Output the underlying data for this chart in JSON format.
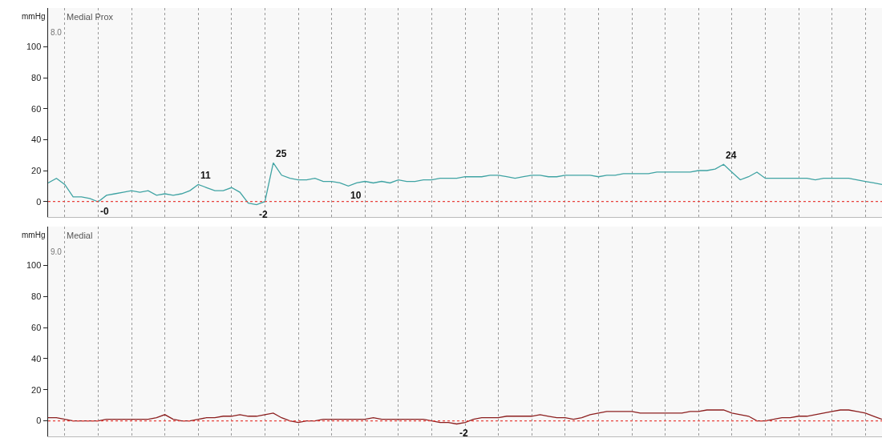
{
  "chart_data": [
    {
      "type": "line",
      "title": "Medial Prox",
      "ylabel": "mmHg",
      "annotations": [
        "8.0"
      ],
      "categories": [
        null,
        null,
        null,
        null,
        null,
        null,
        null,
        null,
        null,
        null,
        null,
        null,
        null,
        null,
        null,
        null,
        null,
        null,
        null,
        null,
        null,
        null,
        null,
        null,
        null,
        null,
        null,
        null,
        null,
        null,
        null,
        null,
        null,
        null,
        null,
        null,
        null,
        null,
        null,
        null,
        null,
        null,
        null,
        null,
        null,
        null,
        null,
        null,
        null,
        null,
        null,
        null,
        null,
        null,
        null,
        null,
        null,
        null,
        null,
        null,
        null,
        null,
        null,
        null,
        null,
        null,
        null,
        null,
        null,
        null,
        null,
        null,
        null,
        null,
        null,
        null,
        null,
        null,
        null,
        null,
        null,
        null,
        null,
        null,
        null,
        null,
        null,
        null,
        null,
        null,
        null,
        null,
        null,
        null,
        null,
        null,
        null,
        null,
        null,
        null,
        null
      ],
      "series": [
        {
          "color": "#3fa3a3",
          "values": [
            12,
            15,
            11,
            3,
            3,
            2,
            -0.2,
            4,
            5,
            6,
            7,
            6,
            7,
            4,
            5,
            4,
            5,
            7,
            11,
            9,
            7,
            7,
            9,
            6,
            -1,
            -2,
            0,
            25,
            17,
            15,
            14,
            14,
            15,
            13,
            13,
            12,
            10,
            12,
            13,
            12,
            13,
            12,
            14,
            13,
            13,
            14,
            14,
            15,
            15,
            15,
            16,
            16,
            16,
            17,
            17,
            16,
            15,
            16,
            17,
            17,
            16,
            16,
            17,
            17,
            17,
            17,
            16,
            17,
            17,
            18,
            18,
            18,
            18,
            19,
            19,
            19,
            19,
            19,
            20,
            20,
            21,
            24,
            19,
            14,
            16,
            19,
            15,
            15,
            15,
            15,
            15,
            15,
            14,
            15,
            15,
            15,
            15,
            14,
            13,
            12,
            11
          ],
          "value_labels": [
            null,
            null,
            null,
            null,
            null,
            null,
            "-0",
            null,
            null,
            null,
            null,
            null,
            null,
            null,
            null,
            null,
            null,
            null,
            "11",
            null,
            null,
            null,
            null,
            null,
            null,
            "-2",
            null,
            "25",
            null,
            null,
            null,
            null,
            null,
            null,
            null,
            null,
            "10",
            null,
            null,
            null,
            null,
            null,
            null,
            null,
            null,
            null,
            null,
            null,
            null,
            null,
            null,
            null,
            null,
            null,
            null,
            null,
            null,
            null,
            null,
            null,
            null,
            null,
            null,
            null,
            null,
            null,
            null,
            null,
            null,
            null,
            null,
            null,
            null,
            null,
            null,
            null,
            null,
            null,
            null,
            null,
            null,
            "24",
            null,
            null,
            null,
            null,
            null,
            null,
            null,
            null,
            null,
            null,
            null,
            null,
            null,
            null,
            null,
            null,
            null,
            null,
            null
          ]
        }
      ],
      "ylim": [
        -10,
        125
      ],
      "yticks": [
        0,
        20,
        40,
        60,
        80,
        100
      ],
      "grid": "x",
      "ref_lines": [
        {
          "axis": "y",
          "value": 0,
          "color": "#e8423c",
          "line_style": "dotted"
        }
      ]
    },
    {
      "type": "line",
      "title": "Medial",
      "ylabel": "mmHg",
      "annotations": [
        "9.0"
      ],
      "categories": [
        null,
        null,
        null,
        null,
        null,
        null,
        null,
        null,
        null,
        null,
        null,
        null,
        null,
        null,
        null,
        null,
        null,
        null,
        null,
        null,
        null,
        null,
        null,
        null,
        null,
        null,
        null,
        null,
        null,
        null,
        null,
        null,
        null,
        null,
        null,
        null,
        null,
        null,
        null,
        null,
        null,
        null,
        null,
        null,
        null,
        null,
        null,
        null,
        null,
        null,
        null,
        null,
        null,
        null,
        null,
        null,
        null,
        null,
        null,
        null,
        null,
        null,
        null,
        null,
        null,
        null,
        null,
        null,
        null,
        null,
        null,
        null,
        null,
        null,
        null,
        null,
        null,
        null,
        null,
        null,
        null,
        null,
        null,
        null,
        null,
        null,
        null,
        null,
        null,
        null,
        null,
        null,
        null,
        null,
        null,
        null,
        null,
        null,
        null,
        null,
        null
      ],
      "series": [
        {
          "color": "#8c1f1f",
          "values": [
            2,
            2,
            1,
            0,
            0,
            0,
            0,
            1,
            1,
            1,
            1,
            1,
            1,
            2,
            4,
            1,
            0,
            0,
            1,
            2,
            2,
            3,
            3,
            4,
            3,
            3,
            4,
            5,
            2,
            0,
            -1,
            0,
            0,
            1,
            1,
            1,
            1,
            1,
            1,
            2,
            1,
            1,
            1,
            1,
            1,
            1,
            0,
            -1,
            -1,
            -2,
            -1,
            1,
            2,
            2,
            2,
            3,
            3,
            3,
            3,
            4,
            3,
            2,
            2,
            1,
            2,
            4,
            5,
            6,
            6,
            6,
            6,
            5,
            5,
            5,
            5,
            5,
            5,
            6,
            6,
            7,
            7,
            7,
            5,
            4,
            3,
            0,
            0,
            1,
            2,
            2,
            3,
            3,
            4,
            5,
            6,
            7,
            7,
            6,
            5,
            3,
            1
          ],
          "value_labels": [
            null,
            null,
            null,
            null,
            null,
            null,
            null,
            null,
            null,
            null,
            null,
            null,
            null,
            null,
            null,
            null,
            null,
            null,
            null,
            null,
            null,
            null,
            null,
            null,
            null,
            null,
            null,
            null,
            null,
            null,
            null,
            null,
            null,
            null,
            null,
            null,
            null,
            null,
            null,
            null,
            null,
            null,
            null,
            null,
            null,
            null,
            null,
            null,
            null,
            "-2",
            null,
            null,
            null,
            null,
            null,
            null,
            null,
            null,
            null,
            null,
            null,
            null,
            null,
            null,
            null,
            null,
            null,
            null,
            null,
            null,
            null,
            null,
            null,
            null,
            null,
            null,
            null,
            null,
            null,
            null,
            null,
            null,
            null,
            null,
            null,
            null,
            null,
            null,
            null,
            null,
            null,
            null,
            null,
            null,
            null,
            null,
            null,
            null,
            null,
            null,
            null
          ]
        }
      ],
      "ylim": [
        -10,
        125
      ],
      "yticks": [
        0,
        20,
        40,
        60,
        80,
        100
      ],
      "grid": "x",
      "ref_lines": [
        {
          "axis": "y",
          "value": 0,
          "color": "#e8423c",
          "line_style": "dotted"
        }
      ]
    }
  ]
}
